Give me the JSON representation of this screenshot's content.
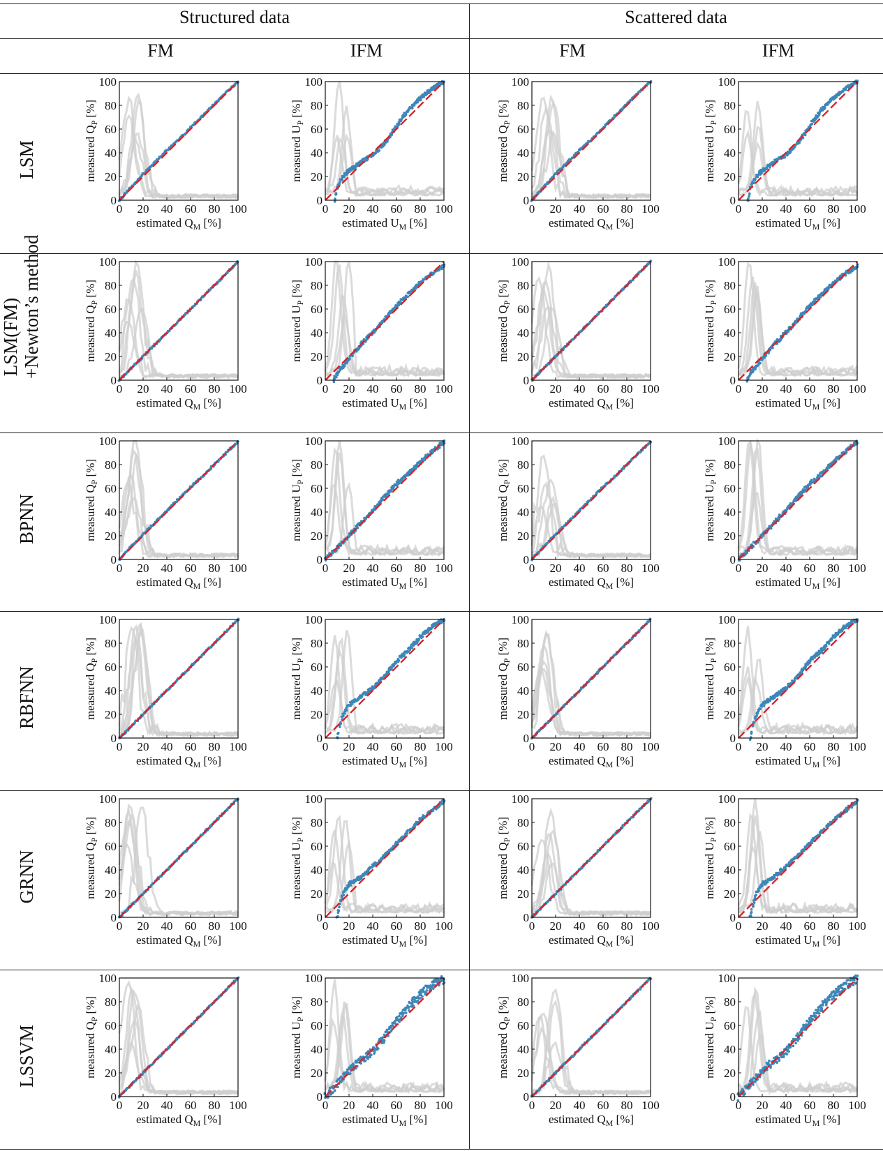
{
  "headers": {
    "group_structured": "Structured data",
    "group_scattered": "Scattered data",
    "col_fm_1": "FM",
    "col_ifm_1": "IFM",
    "col_fm_2": "FM",
    "col_ifm_2": "IFM"
  },
  "rows": [
    {
      "label_lines": [
        "LSM"
      ]
    },
    {
      "label_lines": [
        "LSM(FM)",
        "+Newton’s method"
      ]
    },
    {
      "label_lines": [
        "BPNN"
      ]
    },
    {
      "label_lines": [
        "RBFNN"
      ]
    },
    {
      "label_lines": [
        "GRNN"
      ]
    },
    {
      "label_lines": [
        "LSSVM"
      ]
    }
  ],
  "axes": {
    "FM": {
      "xlabel": "estimated Q",
      "xsub": "M",
      "ylabel": "measured Q",
      "ysub": "P",
      "unit": "[%]"
    },
    "IFM": {
      "xlabel": "estimated U",
      "xsub": "M",
      "ylabel": "measured U",
      "ysub": "P",
      "unit": "[%]"
    },
    "xlim": [
      0,
      100
    ],
    "ylim": [
      0,
      100
    ],
    "ticks": [
      "0",
      "20",
      "40",
      "60",
      "80",
      "100"
    ]
  },
  "colors": {
    "points": "#3d86b8",
    "reference_line": "#d9252b",
    "background_curves": "#cfcfcf",
    "frame": "#111111"
  },
  "chart_data": [
    {
      "type": "scatter",
      "row": "LSM",
      "column": "Structured data / FM",
      "reference": "y = x",
      "x": [
        0,
        10,
        20,
        30,
        40,
        50,
        60,
        70,
        80,
        90,
        100
      ],
      "y": [
        0,
        11,
        22,
        32,
        42,
        51,
        61,
        71,
        81,
        91,
        100
      ]
    },
    {
      "type": "scatter",
      "row": "LSM",
      "column": "Structured data / IFM",
      "reference": "y = x",
      "x": [
        8,
        10,
        15,
        20,
        30,
        40,
        50,
        55,
        60,
        65,
        70,
        80,
        90,
        100
      ],
      "y": [
        0,
        10,
        20,
        25,
        32,
        38,
        48,
        55,
        62,
        70,
        76,
        86,
        94,
        100
      ]
    },
    {
      "type": "scatter",
      "row": "LSM",
      "column": "Scattered data / FM",
      "reference": "y = x",
      "x": [
        0,
        10,
        20,
        30,
        40,
        50,
        60,
        70,
        80,
        90,
        100
      ],
      "y": [
        0,
        11,
        22,
        32,
        42,
        51,
        61,
        71,
        81,
        91,
        100
      ]
    },
    {
      "type": "scatter",
      "row": "LSM",
      "column": "Scattered data / IFM",
      "reference": "y = x",
      "x": [
        8,
        10,
        15,
        20,
        30,
        40,
        50,
        55,
        60,
        65,
        70,
        80,
        90,
        100
      ],
      "y": [
        0,
        10,
        20,
        25,
        32,
        38,
        48,
        55,
        62,
        70,
        76,
        86,
        94,
        100
      ]
    },
    {
      "type": "scatter",
      "row": "LSM(FM)+Newton’s method",
      "column": "Structured data / FM",
      "reference": "y = x",
      "x": [
        0,
        10,
        20,
        30,
        40,
        50,
        60,
        70,
        80,
        90,
        100
      ],
      "y": [
        0,
        10,
        20,
        30,
        40,
        50,
        60,
        70,
        80,
        90,
        100
      ]
    },
    {
      "type": "scatter",
      "row": "LSM(FM)+Newton’s method",
      "column": "Structured data / IFM",
      "reference": "y = x",
      "x": [
        7,
        10,
        20,
        30,
        40,
        50,
        60,
        70,
        80,
        90,
        100
      ],
      "y": [
        0,
        6,
        18,
        30,
        40,
        51,
        63,
        72,
        82,
        90,
        96
      ]
    },
    {
      "type": "scatter",
      "row": "LSM(FM)+Newton’s method",
      "column": "Scattered data / FM",
      "reference": "y = x",
      "x": [
        0,
        10,
        20,
        30,
        40,
        50,
        60,
        70,
        80,
        90,
        100
      ],
      "y": [
        0,
        10,
        20,
        30,
        40,
        50,
        60,
        70,
        80,
        90,
        100
      ]
    },
    {
      "type": "scatter",
      "row": "LSM(FM)+Newton’s method",
      "column": "Scattered data / IFM",
      "reference": "y = x",
      "x": [
        7,
        10,
        20,
        30,
        40,
        50,
        60,
        70,
        80,
        90,
        100
      ],
      "y": [
        0,
        6,
        18,
        30,
        40,
        51,
        63,
        72,
        82,
        90,
        96
      ]
    },
    {
      "type": "scatter",
      "row": "BPNN",
      "column": "Structured data / FM",
      "reference": "y = x",
      "x": [
        0,
        10,
        20,
        30,
        40,
        50,
        60,
        70,
        80,
        90,
        100
      ],
      "y": [
        0,
        11,
        21,
        31,
        41,
        51,
        61,
        70,
        80,
        90,
        99
      ]
    },
    {
      "type": "scatter",
      "row": "BPNN",
      "column": "Structured data / IFM",
      "reference": "y = x",
      "x": [
        0,
        10,
        20,
        30,
        40,
        50,
        60,
        70,
        80,
        90,
        100
      ],
      "y": [
        0,
        10,
        20,
        31,
        41,
        53,
        64,
        72,
        82,
        91,
        99
      ]
    },
    {
      "type": "scatter",
      "row": "BPNN",
      "column": "Scattered data / FM",
      "reference": "y = x",
      "x": [
        0,
        10,
        20,
        30,
        40,
        50,
        60,
        70,
        80,
        90,
        100
      ],
      "y": [
        0,
        11,
        21,
        31,
        41,
        51,
        61,
        70,
        80,
        90,
        99
      ]
    },
    {
      "type": "scatter",
      "row": "BPNN",
      "column": "Scattered data / IFM",
      "reference": "y = x",
      "x": [
        0,
        10,
        20,
        30,
        40,
        50,
        60,
        70,
        80,
        90,
        100
      ],
      "y": [
        0,
        10,
        20,
        31,
        41,
        53,
        64,
        72,
        82,
        91,
        99
      ]
    },
    {
      "type": "scatter",
      "row": "RBFNN",
      "column": "Structured data / FM",
      "reference": "y = x",
      "x": [
        0,
        10,
        20,
        30,
        40,
        50,
        60,
        70,
        80,
        90,
        100
      ],
      "y": [
        0,
        10,
        20,
        30,
        40,
        50,
        60,
        70,
        80,
        90,
        100
      ]
    },
    {
      "type": "scatter",
      "row": "RBFNN",
      "column": "Structured data / IFM",
      "reference": "y = x",
      "x": [
        10,
        12,
        15,
        20,
        30,
        40,
        50,
        60,
        70,
        80,
        90,
        100
      ],
      "y": [
        0,
        10,
        20,
        28,
        35,
        42,
        52,
        65,
        74,
        85,
        94,
        100
      ]
    },
    {
      "type": "scatter",
      "row": "RBFNN",
      "column": "Scattered data / FM",
      "reference": "y = x",
      "x": [
        0,
        10,
        20,
        30,
        40,
        50,
        60,
        70,
        80,
        90,
        100
      ],
      "y": [
        0,
        10,
        20,
        30,
        40,
        50,
        60,
        70,
        80,
        90,
        100
      ]
    },
    {
      "type": "scatter",
      "row": "RBFNN",
      "column": "Scattered data / IFM",
      "reference": "y = x",
      "x": [
        10,
        12,
        15,
        20,
        30,
        40,
        50,
        60,
        70,
        80,
        90,
        100
      ],
      "y": [
        0,
        10,
        20,
        28,
        35,
        42,
        52,
        65,
        74,
        85,
        94,
        100
      ]
    },
    {
      "type": "scatter",
      "row": "GRNN",
      "column": "Structured data / FM",
      "reference": "y = x",
      "x": [
        0,
        10,
        20,
        30,
        40,
        50,
        60,
        70,
        80,
        90,
        100
      ],
      "y": [
        0,
        10,
        20,
        30,
        40,
        50,
        60,
        70,
        80,
        90,
        100
      ]
    },
    {
      "type": "scatter",
      "row": "GRNN",
      "column": "Structured data / IFM",
      "reference": "y = x",
      "x": [
        10,
        12,
        15,
        20,
        30,
        40,
        50,
        60,
        70,
        80,
        90,
        100
      ],
      "y": [
        0,
        10,
        20,
        28,
        34,
        43,
        52,
        62,
        72,
        82,
        90,
        98
      ]
    },
    {
      "type": "scatter",
      "row": "GRNN",
      "column": "Scattered data / FM",
      "reference": "y = x",
      "x": [
        0,
        10,
        20,
        30,
        40,
        50,
        60,
        70,
        80,
        90,
        100
      ],
      "y": [
        0,
        10,
        20,
        30,
        40,
        50,
        60,
        70,
        80,
        90,
        100
      ]
    },
    {
      "type": "scatter",
      "row": "GRNN",
      "column": "Scattered data / IFM",
      "reference": "y = x",
      "x": [
        10,
        12,
        15,
        20,
        30,
        40,
        50,
        60,
        70,
        80,
        90,
        100
      ],
      "y": [
        0,
        10,
        20,
        28,
        34,
        43,
        52,
        62,
        72,
        82,
        90,
        98
      ]
    },
    {
      "type": "scatter",
      "row": "LSSVM",
      "column": "Structured data / FM",
      "reference": "y = x",
      "x": [
        0,
        10,
        20,
        30,
        40,
        50,
        60,
        70,
        80,
        90,
        100
      ],
      "y": [
        0,
        10,
        20,
        30,
        40,
        50,
        60,
        70,
        80,
        90,
        100
      ]
    },
    {
      "type": "scatter",
      "row": "LSSVM",
      "column": "Structured data / IFM",
      "reference": "y = x",
      "x": [
        0,
        5,
        10,
        20,
        30,
        40,
        50,
        60,
        70,
        80,
        90,
        100
      ],
      "y": [
        0,
        5,
        10,
        22,
        30,
        38,
        50,
        64,
        76,
        86,
        94,
        99
      ]
    },
    {
      "type": "scatter",
      "row": "LSSVM",
      "column": "Scattered data / FM",
      "reference": "y = x",
      "x": [
        0,
        10,
        20,
        30,
        40,
        50,
        60,
        70,
        80,
        90,
        100
      ],
      "y": [
        0,
        10,
        20,
        30,
        40,
        50,
        60,
        70,
        80,
        90,
        100
      ]
    },
    {
      "type": "scatter",
      "row": "LSSVM",
      "column": "Scattered data / IFM",
      "reference": "y = x",
      "x": [
        0,
        5,
        10,
        20,
        30,
        40,
        50,
        60,
        70,
        80,
        90,
        100
      ],
      "y": [
        0,
        5,
        10,
        22,
        30,
        38,
        50,
        64,
        76,
        86,
        94,
        99
      ]
    }
  ]
}
